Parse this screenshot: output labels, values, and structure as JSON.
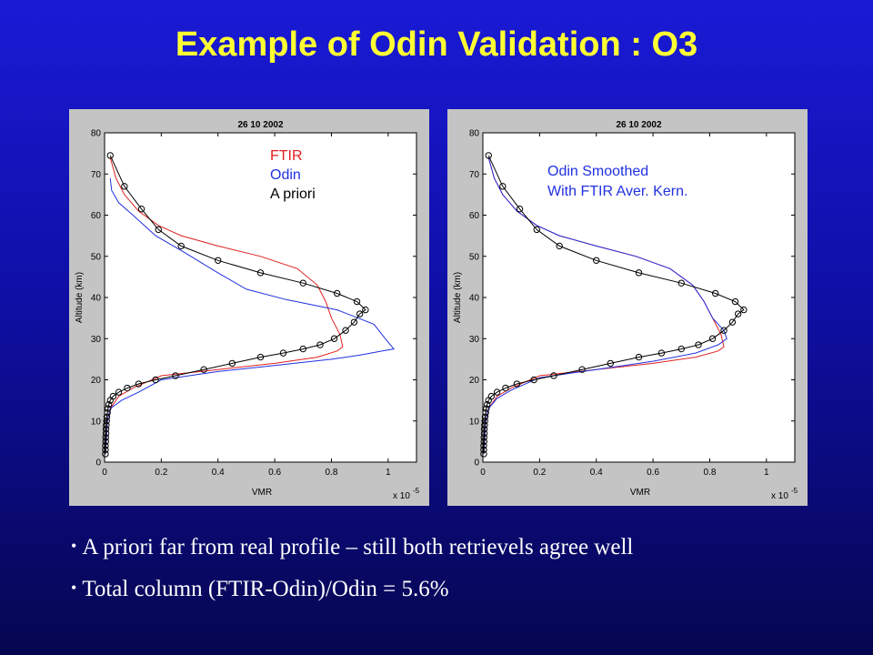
{
  "slide": {
    "title": "Example of Odin Validation : O3",
    "bullets": [
      "A priori far from real profile – still both retrievels agree well",
      "Total column (FTIR-Odin)/Odin = 5.6%"
    ]
  },
  "colors": {
    "ftir": "#e02020",
    "odin": "#2030e0",
    "apriori": "#000000"
  },
  "chart_data": [
    {
      "type": "line",
      "title": "26 10 2002",
      "xlabel": "VMR",
      "ylabel": "Altitude (km)",
      "x_multiplier": "x 10",
      "x_multiplier_exp": "-5",
      "xlim": [
        0,
        1.1
      ],
      "ylim": [
        0,
        80
      ],
      "xticks": [
        "0",
        "0.2",
        "0.4",
        "0.6",
        "0.8",
        "1"
      ],
      "yticks": [
        "0",
        "10",
        "20",
        "30",
        "40",
        "50",
        "60",
        "70",
        "80"
      ],
      "legend_items": [
        {
          "text": "FTIR",
          "color": "#e02020"
        },
        {
          "text": "Odin",
          "color": "#2030e0"
        },
        {
          "text": "A priori",
          "color": "#000000"
        }
      ],
      "series": [
        {
          "name": "FTIR",
          "color": "#e02020",
          "markers": false,
          "x": [
            0.003,
            0.006,
            0.01,
            0.02,
            0.05,
            0.1,
            0.2,
            0.4,
            0.6,
            0.75,
            0.82,
            0.84,
            0.83,
            0.8,
            0.78,
            0.75,
            0.68,
            0.55,
            0.4,
            0.27,
            0.19,
            0.12,
            0.07,
            0.04,
            0.02
          ],
          "y": [
            2,
            5,
            10,
            13,
            16,
            18,
            21,
            22.5,
            24,
            25.5,
            27,
            28,
            31,
            35,
            39,
            43,
            47,
            50,
            52.5,
            55,
            57.5,
            61,
            65,
            69,
            74
          ]
        },
        {
          "name": "Odin",
          "color": "#2030e0",
          "markers": false,
          "x": [
            0.003,
            0.006,
            0.01,
            0.02,
            0.06,
            0.12,
            0.2,
            0.4,
            0.6,
            0.8,
            0.9,
            0.98,
            1.02,
            0.99,
            0.95,
            0.82,
            0.64,
            0.5,
            0.4,
            0.28,
            0.18,
            0.1,
            0.05,
            0.025,
            0.02
          ],
          "y": [
            2,
            5,
            10,
            13,
            15,
            17,
            20,
            22,
            23.5,
            25,
            26,
            27,
            27.5,
            30,
            33.5,
            37,
            39.5,
            42,
            46,
            51,
            55,
            60,
            63,
            66,
            69
          ]
        },
        {
          "name": "A priori",
          "color": "#000000",
          "markers": true,
          "x": [
            0.003,
            0.003,
            0.003,
            0.004,
            0.004,
            0.005,
            0.005,
            0.006,
            0.007,
            0.008,
            0.01,
            0.012,
            0.015,
            0.02,
            0.03,
            0.05,
            0.08,
            0.12,
            0.18,
            0.25,
            0.35,
            0.45,
            0.55,
            0.63,
            0.7,
            0.76,
            0.81,
            0.85,
            0.88,
            0.9,
            0.92,
            0.89,
            0.82,
            0.7,
            0.55,
            0.4,
            0.27,
            0.19,
            0.13,
            0.07,
            0.02
          ],
          "y": [
            2,
            3,
            4,
            5,
            6,
            7,
            8,
            9,
            10,
            11,
            12,
            13,
            14,
            15,
            16,
            17,
            18,
            19,
            20,
            21,
            22.5,
            24,
            25.5,
            26.5,
            27.5,
            28.5,
            30,
            32,
            34,
            36,
            37,
            39,
            41,
            43.5,
            46,
            49,
            52.5,
            56.5,
            61.5,
            67,
            74.5
          ]
        }
      ]
    },
    {
      "type": "line",
      "title": "26 10 2002",
      "xlabel": "VMR",
      "ylabel": "Altitude (km)",
      "x_multiplier": "x 10",
      "x_multiplier_exp": "-5",
      "xlim": [
        0,
        1.1
      ],
      "ylim": [
        0,
        80
      ],
      "xticks": [
        "0",
        "0.2",
        "0.4",
        "0.6",
        "0.8",
        "1"
      ],
      "yticks": [
        "0",
        "10",
        "20",
        "30",
        "40",
        "50",
        "60",
        "70",
        "80"
      ],
      "legend_items": [
        {
          "text": "Odin Smoothed",
          "color": "#2030e0"
        },
        {
          "text": "With FTIR Aver. Kern.",
          "color": "#2030e0"
        }
      ],
      "series": [
        {
          "name": "FTIR",
          "color": "#e02020",
          "markers": false,
          "x": [
            0.003,
            0.006,
            0.01,
            0.02,
            0.05,
            0.1,
            0.2,
            0.4,
            0.6,
            0.75,
            0.83,
            0.85,
            0.84,
            0.81,
            0.78,
            0.74,
            0.66,
            0.54,
            0.4,
            0.27,
            0.19,
            0.12,
            0.07,
            0.04,
            0.02
          ],
          "y": [
            2,
            5,
            10,
            13,
            16,
            18,
            21,
            22.5,
            24,
            25.5,
            27,
            28,
            31,
            35,
            39,
            43,
            47,
            50,
            52.5,
            55,
            57.5,
            61,
            65,
            69,
            74
          ]
        },
        {
          "name": "Odin Smoothed",
          "color": "#2030e0",
          "markers": false,
          "x": [
            0.003,
            0.006,
            0.01,
            0.02,
            0.05,
            0.1,
            0.2,
            0.4,
            0.6,
            0.75,
            0.83,
            0.86,
            0.85,
            0.81,
            0.78,
            0.74,
            0.66,
            0.54,
            0.4,
            0.27,
            0.19,
            0.12,
            0.07,
            0.04,
            0.02
          ],
          "y": [
            2,
            5,
            10,
            13,
            15.5,
            17.5,
            20.5,
            22.5,
            24.5,
            26.5,
            28.5,
            30,
            32,
            35,
            39,
            43,
            47,
            50,
            52.5,
            55,
            57.5,
            61,
            65,
            69,
            74
          ]
        },
        {
          "name": "A priori",
          "color": "#000000",
          "markers": true,
          "x": [
            0.003,
            0.003,
            0.003,
            0.004,
            0.004,
            0.005,
            0.005,
            0.006,
            0.007,
            0.008,
            0.01,
            0.012,
            0.015,
            0.02,
            0.03,
            0.05,
            0.08,
            0.12,
            0.18,
            0.25,
            0.35,
            0.45,
            0.55,
            0.63,
            0.7,
            0.76,
            0.81,
            0.85,
            0.88,
            0.9,
            0.92,
            0.89,
            0.82,
            0.7,
            0.55,
            0.4,
            0.27,
            0.19,
            0.13,
            0.07,
            0.02
          ],
          "y": [
            2,
            3,
            4,
            5,
            6,
            7,
            8,
            9,
            10,
            11,
            12,
            13,
            14,
            15,
            16,
            17,
            18,
            19,
            20,
            21,
            22.5,
            24,
            25.5,
            26.5,
            27.5,
            28.5,
            30,
            32,
            34,
            36,
            37,
            39,
            41,
            43.5,
            46,
            49,
            52.5,
            56.5,
            61.5,
            67,
            74.5
          ]
        }
      ]
    }
  ]
}
